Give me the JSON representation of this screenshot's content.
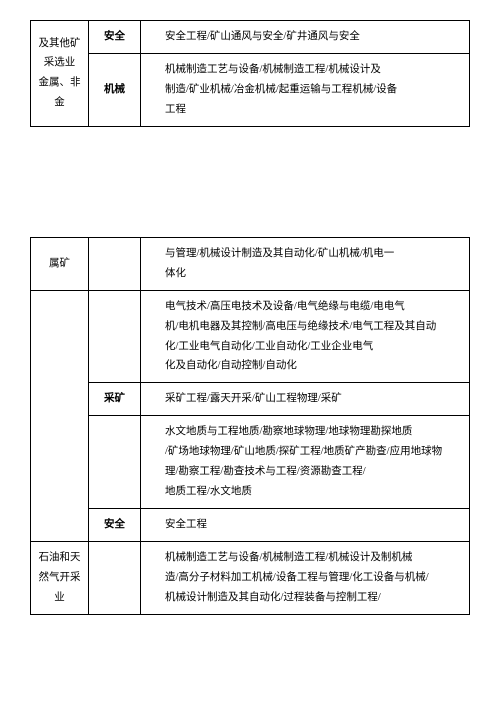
{
  "table1": {
    "rows": [
      {
        "a": "及其他矿采选业\n金属、非金",
        "b": "安全",
        "c": "安全工程/矿山通风与安全/矿井通风与安全"
      },
      {
        "b": "机械",
        "c": "机械制造工艺与设备/机械制造工程/机械设计及\n制造/矿业机械/冶金机械/起重运输与工程机械/设备\n工程"
      }
    ]
  },
  "table2": {
    "rows": [
      {
        "a": "属矿",
        "b": "",
        "c": "与管理/机械设计制造及其自动化/矿山机械/机电一\n体化"
      },
      {
        "a": "",
        "b": "",
        "c": "电气技术/高压电技术及设备/电气绝缘与电缆/电电气\n机/电机电器及其控制/高电压与绝缘技术/电气工程及其自动\n化/工业电气自动化/工业自动化/工业企业电气\n化及自动化/自动控制/自动化"
      },
      {
        "a": "",
        "b": "采矿",
        "c": "采矿工程/露天开采/矿山工程物理/采矿"
      },
      {
        "a": "",
        "b": "",
        "c": "水文地质与工程地质/勘察地球物理/地球物理勘探地质\n/矿场地球物理/矿山地质/探矿工程/地质矿产勘查/应用地球物\n理/勘察工程/勘查技术与工程/资源勘查工程/\n地质工程/水文地质"
      },
      {
        "a": "",
        "b": "安全",
        "c": "安全工程"
      },
      {
        "a": "石油和天然气开采业",
        "b": "",
        "c": "机械制造工艺与设备/机械制造工程/机械设计及制机械\n造/高分子材料加工机械/设备工程与管理/化工设备与机械/\n机械设计制造及其自动化/过程装备与控制工程/"
      }
    ]
  }
}
